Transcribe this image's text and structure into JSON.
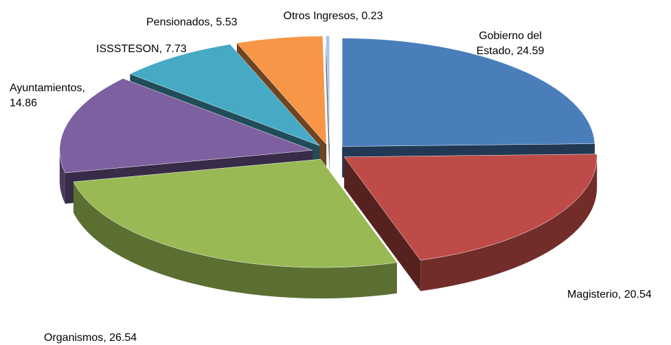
{
  "chart_data": {
    "type": "pie3d",
    "categories": [
      "Gobierno del Estado",
      "Magisterio",
      "Organismos",
      "Ayuntamientos",
      "ISSSTESON",
      "Pensionados",
      "Otros Ingresos"
    ],
    "values": [
      24.59,
      20.54,
      26.54,
      14.86,
      7.73,
      5.53,
      0.23
    ],
    "value_labels": [
      "Gobierno del Estado, 24.59",
      "Magisterio, 20.54",
      "Organismos, 26.54",
      "Ayuntamientos, 14.86",
      "ISSSTESON, 7.73",
      "Pensionados, 5.53",
      "Otros Ingresos, 0.23"
    ],
    "colors": [
      "#4a7ebb",
      "#be4b48",
      "#98b954",
      "#7d60a0",
      "#46aac5",
      "#f79646",
      "#a9c4eb"
    ]
  }
}
